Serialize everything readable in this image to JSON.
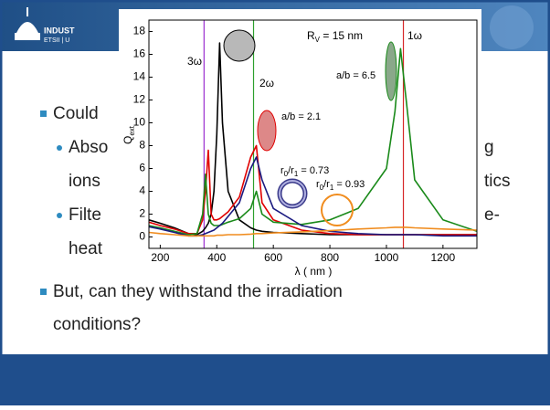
{
  "header": {
    "logo_left": [
      "INDUST",
      "ETSII | U"
    ]
  },
  "bullets": [
    {
      "level": 1,
      "text": "Could"
    },
    {
      "level": 2,
      "text": "Abso",
      "right": "g"
    },
    {
      "level": 2,
      "cont": true,
      "text": "ions",
      "right": "tics"
    },
    {
      "level": 2,
      "text": "Filte",
      "right": "e-"
    },
    {
      "level": 2,
      "cont": true,
      "text": "heat"
    },
    {
      "level": 1,
      "text": "But, can they withstand the irradiation"
    },
    {
      "level": 1,
      "cont": true,
      "text": "conditions?"
    }
  ],
  "chart_data": {
    "type": "line",
    "x_label": "λ ( nm )",
    "y_label": [
      "Q",
      "ext"
    ],
    "annotations": [
      [
        "R",
        "V",
        " = 15 nm"
      ],
      [
        "a/b = 6.5"
      ],
      [
        "a/b = 2.1"
      ],
      [
        "r",
        "0",
        "/r",
        "1",
        " = 0.73"
      ],
      [
        "r",
        "0",
        "/r",
        "1",
        " = 0.93"
      ]
    ],
    "vlines": [
      {
        "value": 355,
        "color": "#9b30d0",
        "label": "3ω"
      },
      {
        "value": 530,
        "color": "#2ca02c",
        "label": "2ω"
      },
      {
        "value": 1060,
        "color": "#d62728",
        "label": "1ω"
      }
    ],
    "x": [
      160,
      200,
      250,
      300,
      330,
      350,
      360,
      370,
      380,
      390,
      400,
      410,
      420,
      440,
      480,
      520,
      540,
      560,
      600,
      700,
      800,
      900,
      1000,
      1030,
      1050,
      1070,
      1100,
      1200,
      1320
    ],
    "series": [
      {
        "color": "#000000",
        "values": [
          1.5,
          1.2,
          0.8,
          0.3,
          0.2,
          0.5,
          0.8,
          1.2,
          2,
          4,
          9,
          17,
          10,
          4,
          1.5,
          0.8,
          0.6,
          0.5,
          0.4,
          0.3,
          0.2,
          0.2,
          0.2,
          0.2,
          0.2,
          0.2,
          0.2,
          0.2,
          0.2
        ]
      },
      {
        "color": "#e00000",
        "values": [
          1.3,
          1.0,
          0.7,
          0.3,
          0.3,
          1.5,
          4,
          7.6,
          2,
          1.5,
          1.5,
          1.6,
          1.8,
          2.2,
          3.5,
          7,
          8,
          3,
          1.5,
          0.6,
          0.3,
          0.2,
          0.2,
          0.2,
          0.2,
          0.2,
          0.2,
          0.2,
          0.2
        ]
      },
      {
        "color": "#1a8a1a",
        "values": [
          1.0,
          0.8,
          0.5,
          0.2,
          0.3,
          2,
          5.5,
          2,
          1.2,
          1,
          1,
          1,
          1.1,
          1.3,
          1.6,
          2.5,
          4,
          2,
          1.3,
          1.1,
          1.5,
          2.5,
          6,
          11,
          16.5,
          12,
          5,
          1.5,
          0.5
        ]
      },
      {
        "color": "#1a1a80",
        "values": [
          0.9,
          0.7,
          0.4,
          0.1,
          0.1,
          0.2,
          0.3,
          0.4,
          0.5,
          0.6,
          0.8,
          1,
          1.2,
          1.8,
          3,
          6,
          7,
          5,
          2.5,
          1,
          0.5,
          0.3,
          0.2,
          0.2,
          0.2,
          0.2,
          0.2,
          0.1,
          0.1
        ]
      },
      {
        "color": "#f08c1e",
        "values": [
          0.4,
          0.3,
          0.2,
          0.1,
          0.1,
          0.1,
          0.1,
          0.1,
          0.1,
          0.1,
          0.15,
          0.15,
          0.15,
          0.2,
          0.2,
          0.25,
          0.3,
          0.3,
          0.35,
          0.45,
          0.55,
          0.7,
          0.8,
          0.85,
          0.85,
          0.85,
          0.8,
          0.7,
          0.6
        ]
      }
    ],
    "xlim": [
      160,
      1320
    ],
    "xticks": [
      200,
      400,
      600,
      800,
      1000,
      1200
    ],
    "ylim": [
      -1,
      19
    ],
    "yticks": [
      0,
      2,
      4,
      6,
      8,
      10,
      12,
      14,
      16,
      18
    ]
  }
}
